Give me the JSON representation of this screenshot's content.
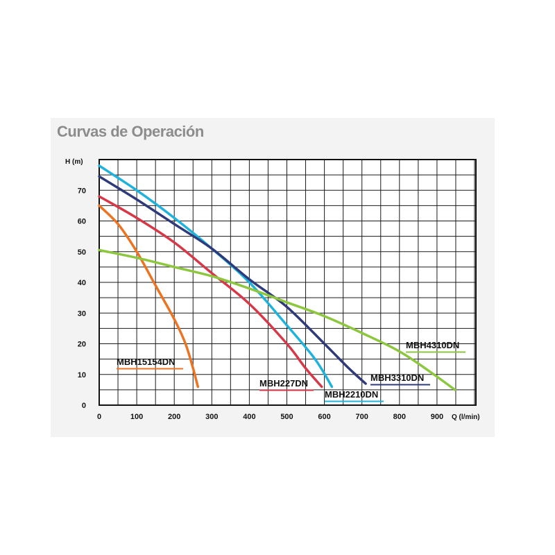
{
  "chart_data": {
    "type": "line",
    "title": "Curvas de Operación",
    "xlabel": "Q (l/min)",
    "ylabel": "H (m)",
    "xlim": [
      0,
      1000
    ],
    "ylim": [
      0,
      80
    ],
    "x_ticks": [
      0,
      100,
      200,
      300,
      400,
      500,
      600,
      700,
      800,
      900
    ],
    "y_ticks": [
      0,
      10,
      20,
      30,
      40,
      50,
      60,
      70
    ],
    "grid": true,
    "series": [
      {
        "name": "MBH15154DN",
        "color": "#ec7322",
        "points": [
          [
            0,
            65
          ],
          [
            50,
            59
          ],
          [
            100,
            50
          ],
          [
            150,
            39
          ],
          [
            200,
            28
          ],
          [
            230,
            20
          ],
          [
            250,
            12
          ],
          [
            263,
            6
          ]
        ]
      },
      {
        "name": "MBH227DN",
        "color": "#d63848",
        "points": [
          [
            0,
            68
          ],
          [
            100,
            61
          ],
          [
            200,
            53
          ],
          [
            300,
            43
          ],
          [
            400,
            33
          ],
          [
            500,
            20
          ],
          [
            550,
            12
          ],
          [
            593,
            6
          ]
        ]
      },
      {
        "name": "MBH2210DN",
        "color": "#1fb3dc",
        "points": [
          [
            0,
            78
          ],
          [
            100,
            70
          ],
          [
            200,
            61
          ],
          [
            300,
            51
          ],
          [
            400,
            40
          ],
          [
            500,
            26
          ],
          [
            575,
            15
          ],
          [
            620,
            6
          ]
        ]
      },
      {
        "name": "MBH3310DN",
        "color": "#2e3a7a",
        "points": [
          [
            0,
            74.5
          ],
          [
            100,
            67
          ],
          [
            200,
            59
          ],
          [
            300,
            51
          ],
          [
            400,
            41
          ],
          [
            500,
            32
          ],
          [
            600,
            20
          ],
          [
            665,
            12
          ],
          [
            710,
            7
          ]
        ]
      },
      {
        "name": "MBH4310DN",
        "color": "#8dc63f",
        "points": [
          [
            0,
            50.5
          ],
          [
            100,
            48
          ],
          [
            200,
            45
          ],
          [
            300,
            42
          ],
          [
            400,
            38
          ],
          [
            500,
            33.5
          ],
          [
            600,
            29
          ],
          [
            700,
            23.5
          ],
          [
            800,
            17.5
          ],
          [
            880,
            11
          ],
          [
            948,
            5
          ]
        ]
      }
    ]
  }
}
